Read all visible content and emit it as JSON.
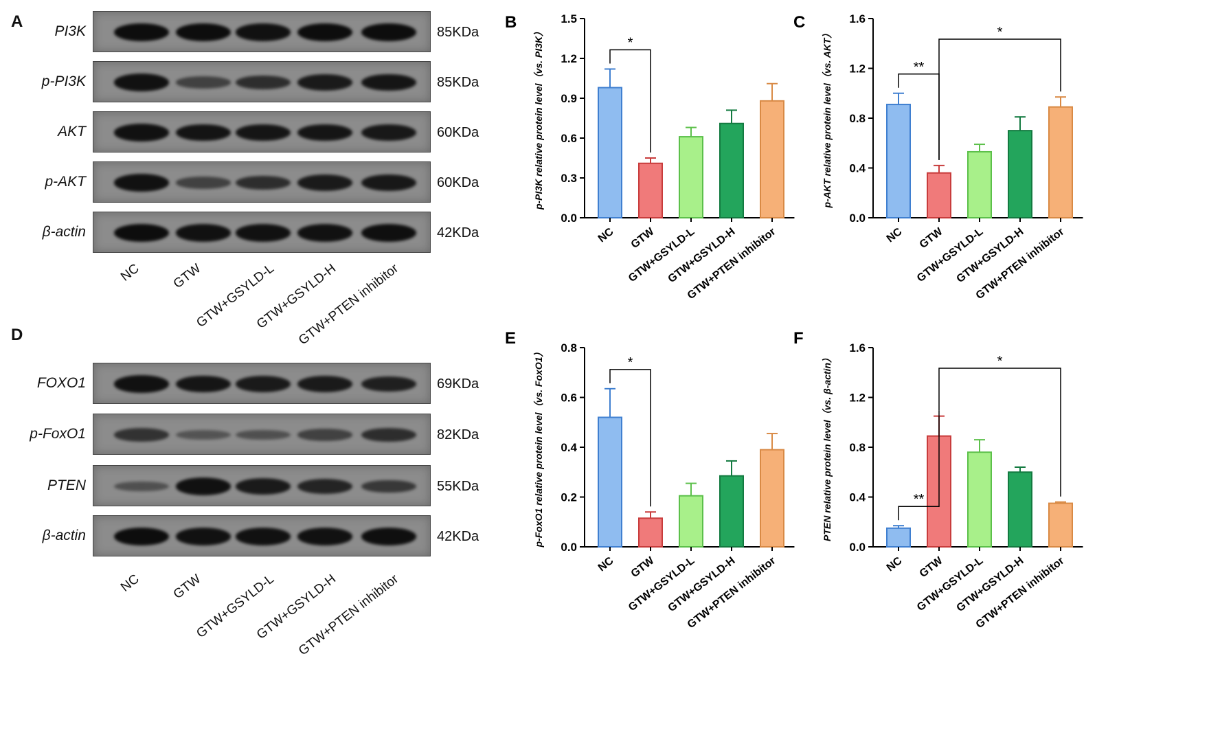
{
  "colors": {
    "NC": "#8fbcf0",
    "GTW": "#f07a7a",
    "GTW+GSYLD-L": "#a8f08a",
    "GTW+GSYLD-H": "#23a55c",
    "GTW+PTEN inhibitor": "#f6b077",
    "NC_stroke": "#3f7fd0",
    "GTW_stroke": "#c83c3c",
    "L_stroke": "#5cc04a",
    "H_stroke": "#137a40",
    "P_stroke": "#d98a45"
  },
  "blot_top": {
    "letter": "A",
    "rows": [
      {
        "label": "PI3K",
        "kda": "85KDa",
        "intensity": [
          1.0,
          1.0,
          0.95,
          1.0,
          1.0
        ]
      },
      {
        "label": "p-PI3K",
        "kda": "85KDa",
        "intensity": [
          0.95,
          0.45,
          0.65,
          0.85,
          0.9
        ]
      },
      {
        "label": "AKT",
        "kda": "60KDa",
        "intensity": [
          0.95,
          0.92,
          0.9,
          0.9,
          0.88
        ]
      },
      {
        "label": "p-AKT",
        "kda": "60KDa",
        "intensity": [
          0.95,
          0.45,
          0.65,
          0.85,
          0.88
        ]
      },
      {
        "label": "β-actin",
        "kda": "42KDa",
        "intensity": [
          1.0,
          0.95,
          0.95,
          0.95,
          0.98
        ]
      }
    ],
    "lanes": [
      "NC",
      "GTW",
      "GTW+GSYLD-L",
      "GTW+GSYLD-H",
      "GTW+PTEN inhibitor"
    ]
  },
  "blot_bottom": {
    "letter": "D",
    "rows": [
      {
        "label": "FOXO1",
        "kda": "69KDa",
        "intensity": [
          0.95,
          0.9,
          0.85,
          0.85,
          0.8
        ]
      },
      {
        "label": "p-FoxO1",
        "kda": "82KDa",
        "intensity": [
          0.6,
          0.25,
          0.3,
          0.45,
          0.65
        ]
      },
      {
        "label": "PTEN",
        "kda": "55KDa",
        "intensity": [
          0.3,
          0.95,
          0.85,
          0.75,
          0.55
        ]
      },
      {
        "label": "β-actin",
        "kda": "42KDa",
        "intensity": [
          1.0,
          0.95,
          0.95,
          0.95,
          0.98
        ]
      }
    ],
    "lanes": [
      "NC",
      "GTW",
      "GTW+GSYLD-L",
      "GTW+GSYLD-H",
      "GTW+PTEN inhibitor"
    ]
  },
  "chart_data": [
    {
      "letter": "B",
      "type": "bar",
      "categories": [
        "NC",
        "GTW",
        "GTW+GSYLD-L",
        "GTW+GSYLD-H",
        "GTW+PTEN inhibitor"
      ],
      "values": [
        0.98,
        0.41,
        0.61,
        0.71,
        0.88
      ],
      "errors": [
        0.14,
        0.04,
        0.07,
        0.1,
        0.13
      ],
      "ylabel": "p-PI3K relative protein level（vs. PI3K）",
      "ylim": [
        0,
        1.5
      ],
      "yticks": [
        "0.0",
        "0.3",
        "0.6",
        "0.9",
        "1.2",
        "1.5"
      ],
      "significance": [
        {
          "from": 0,
          "to": 1,
          "label": "*"
        }
      ]
    },
    {
      "letter": "C",
      "type": "bar",
      "categories": [
        "NC",
        "GTW",
        "GTW+GSYLD-L",
        "GTW+GSYLD-H",
        "GTW+PTEN inhibitor"
      ],
      "values": [
        0.91,
        0.36,
        0.53,
        0.7,
        0.89
      ],
      "errors": [
        0.09,
        0.06,
        0.06,
        0.11,
        0.08
      ],
      "ylabel": "p-AKT relative protein level（vs. AKT）",
      "ylim": [
        0,
        1.6
      ],
      "yticks": [
        "0.0",
        "0.4",
        "0.8",
        "1.2",
        "1.6"
      ],
      "significance": [
        {
          "from": 0,
          "to": 1,
          "label": "**"
        },
        {
          "from": 1,
          "to": 4,
          "label": "*"
        }
      ]
    },
    {
      "letter": "E",
      "type": "bar",
      "categories": [
        "NC",
        "GTW",
        "GTW+GSYLD-L",
        "GTW+GSYLD-H",
        "GTW+PTEN inhibitor"
      ],
      "values": [
        0.52,
        0.115,
        0.205,
        0.285,
        0.39
      ],
      "errors": [
        0.115,
        0.025,
        0.05,
        0.06,
        0.065
      ],
      "ylabel": "p-FoxO1 relative protein level（vs. FoxO1）",
      "ylim": [
        0,
        0.8
      ],
      "yticks": [
        "0.0",
        "0.2",
        "0.4",
        "0.6",
        "0.8"
      ],
      "significance": [
        {
          "from": 0,
          "to": 1,
          "label": "*"
        }
      ]
    },
    {
      "letter": "F",
      "type": "bar",
      "categories": [
        "NC",
        "GTW",
        "GTW+GSYLD-L",
        "GTW+GSYLD-H",
        "GTW+PTEN inhibitor"
      ],
      "values": [
        0.15,
        0.89,
        0.76,
        0.6,
        0.35
      ],
      "errors": [
        0.02,
        0.16,
        0.1,
        0.04,
        0.01
      ],
      "ylabel": "PTEN relative protein level（vs. β-actin）",
      "ylim": [
        0,
        1.6
      ],
      "yticks": [
        "0.0",
        "0.4",
        "0.8",
        "1.2",
        "1.6"
      ],
      "significance": [
        {
          "from": 0,
          "to": 1,
          "label": "**"
        },
        {
          "from": 1,
          "to": 4,
          "label": "*"
        }
      ]
    }
  ]
}
